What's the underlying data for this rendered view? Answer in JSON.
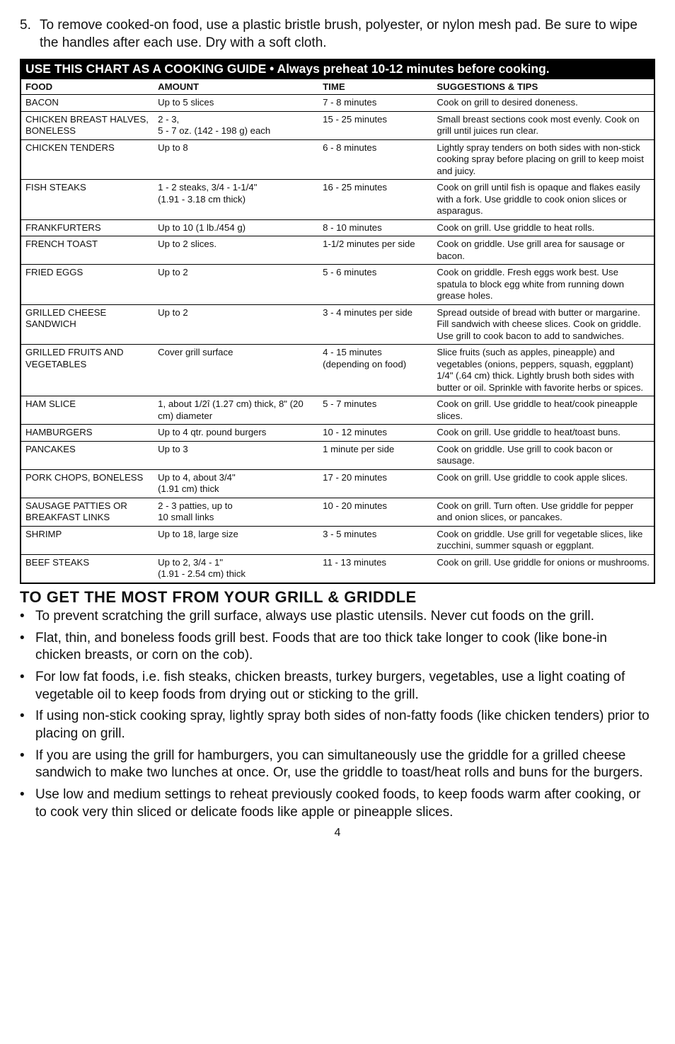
{
  "intro": {
    "number": "5.",
    "text": "To remove cooked-on food, use a plastic bristle brush, polyester, or nylon mesh pad.  Be sure to wipe the handles after each use.  Dry with a soft cloth."
  },
  "chart": {
    "title_main": "USE THIS CHART AS A COOKING GUIDE",
    "title_sub": " • Always preheat 10-12 minutes before cooking.",
    "headers": {
      "food": "FOOD",
      "amount": "AMOUNT",
      "time": "TIME",
      "sugg": "SUGGESTIONS & TIPS"
    },
    "rows": [
      {
        "food": "BACON",
        "amount": "Up to 5 slices",
        "time": "7 - 8 minutes",
        "sugg": "Cook on grill to desired doneness."
      },
      {
        "food": "CHICKEN BREAST HALVES, BONELESS",
        "amount": "2 - 3,\n5 - 7 oz. (142 - 198 g) each",
        "time": "15 - 25 minutes",
        "sugg": "Small breast sections cook most evenly.  Cook on grill until juices run clear."
      },
      {
        "food": "CHICKEN TENDERS",
        "amount": "Up to 8",
        "time": "6 - 8 minutes",
        "sugg": "Lightly spray tenders on both sides with non-stick cooking spray before placing on grill to keep moist and juicy."
      },
      {
        "food": "FISH STEAKS",
        "amount": "1 - 2 steaks, 3/4 - 1-1/4\"\n(1.91 - 3.18 cm thick)",
        "time": "16 - 25 minutes",
        "sugg": "Cook on grill until fish is opaque and flakes easily with a fork.  Use griddle to cook onion slices or asparagus."
      },
      {
        "food": "FRANKFURTERS",
        "amount": "Up to 10 (1 lb./454 g)",
        "time": "8 - 10 minutes",
        "sugg": "Cook on grill.  Use griddle to heat rolls."
      },
      {
        "food": "FRENCH TOAST",
        "amount": "Up to 2 slices.",
        "time": "1-1/2 minutes per side",
        "sugg": "Cook on griddle.  Use grill area for sausage or bacon."
      },
      {
        "food": "FRIED EGGS",
        "amount": "Up to 2",
        "time": "5 - 6 minutes",
        "sugg": "Cook on griddle.  Fresh eggs work best.  Use spatula to block egg white from running down grease holes."
      },
      {
        "food": "GRILLED CHEESE SANDWICH",
        "amount": "Up to 2",
        "time": "3 - 4 minutes per side",
        "sugg": "Spread outside of bread with butter or margarine.  Fill sandwich with cheese slices.  Cook on griddle.  Use grill to cook bacon to add to sandwiches."
      },
      {
        "food": "GRILLED FRUITS AND VEGETABLES",
        "amount": "Cover grill surface",
        "time": "4 - 15 minutes (depending on food)",
        "sugg": "Slice fruits (such as apples, pineapple) and vegetables (onions, peppers, squash, eggplant) 1/4\" (.64 cm) thick.  Lightly brush both sides with butter or oil.  Sprinkle with favorite herbs or spices."
      },
      {
        "food": "HAM SLICE",
        "amount": "1, about 1/2î (1.27 cm) thick, 8\" (20 cm) diameter",
        "time": "5 - 7 minutes",
        "sugg": "Cook on grill.  Use griddle to heat/cook pineapple slices."
      },
      {
        "food": "HAMBURGERS",
        "amount": "Up to 4 qtr. pound burgers",
        "time": "10 - 12 minutes",
        "sugg": "Cook on grill.  Use griddle to heat/toast buns."
      },
      {
        "food": "PANCAKES",
        "amount": "Up to 3",
        "time": "1 minute per side",
        "sugg": "Cook on griddle.  Use grill to cook bacon or sausage."
      },
      {
        "food": "PORK CHOPS, BONELESS",
        "amount": "Up to 4, about 3/4\"\n(1.91 cm) thick",
        "time": "17 - 20 minutes",
        "sugg": "Cook on grill.  Use griddle to cook apple slices."
      },
      {
        "food": "SAUSAGE PATTIES OR BREAKFAST LINKS",
        "amount": "2 - 3 patties, up to\n10 small links",
        "time": "10 - 20 minutes",
        "sugg": "Cook on grill.  Turn often.  Use griddle for pepper and onion slices, or pancakes."
      },
      {
        "food": "SHRIMP",
        "amount": "Up to 18, large size",
        "time": "3 - 5 minutes",
        "sugg": "Cook on griddle.  Use grill for vegetable slices, like zucchini, summer squash or eggplant."
      },
      {
        "food": "BEEF STEAKS",
        "amount": "Up to 2, 3/4 - 1\"\n(1.91 - 2.54 cm) thick",
        "time": "11 - 13 minutes",
        "sugg": "Cook on grill.  Use griddle for onions or mushrooms."
      }
    ]
  },
  "tips_section": {
    "heading": "TO GET THE MOST FROM YOUR GRILL & GRIDDLE",
    "bullets": [
      "To prevent scratching the grill surface, always use plastic utensils.  Never cut foods on the grill.",
      "Flat, thin, and boneless foods grill best.  Foods that are too thick take longer to cook (like bone-in chicken breasts, or corn on the cob).",
      "For low fat foods, i.e. fish steaks, chicken breasts, turkey burgers,  vegetables, use a light coating of vegetable oil to keep foods from drying out or sticking to the grill.",
      "If using non-stick cooking spray, lightly spray both sides of non-fatty foods (like chicken tenders) prior to placing on grill.",
      "If you are using the grill for hamburgers, you can simultaneously use the griddle for a grilled cheese sandwich to make two lunches at once.  Or, use the griddle to toast/heat rolls and buns for the burgers.",
      "Use low and medium settings to reheat previously cooked foods, to keep foods warm after cooking, or to cook very thin sliced or delicate foods like apple or pineapple slices."
    ]
  },
  "page_number": "4"
}
